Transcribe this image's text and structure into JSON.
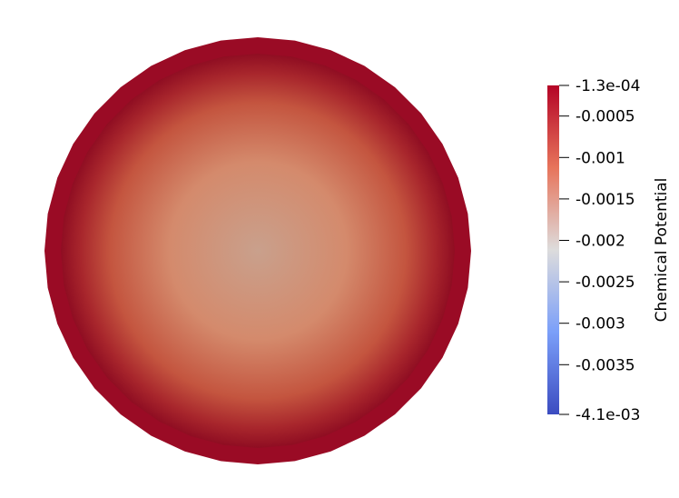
{
  "scene": {
    "field_name": "Chemical Potential",
    "range": {
      "min": -0.0041,
      "max": -0.00013
    },
    "edge_color": "#b40426",
    "center_color": "#c9a08c"
  },
  "color_bar": {
    "title": "Chemical Potential",
    "colormap": "coolwarm",
    "colors": {
      "top": "#b40426",
      "upper": "#e7745b",
      "middle": "#dddcdc",
      "lower": "#7b9ff9",
      "bottom": "#3b4cc0"
    },
    "ticks": [
      {
        "value": -0.00013,
        "label": "-1.3e-04"
      },
      {
        "value": -0.0005,
        "label": "-0.0005"
      },
      {
        "value": -0.001,
        "label": "-0.001"
      },
      {
        "value": -0.0015,
        "label": "-0.0015"
      },
      {
        "value": -0.002,
        "label": "-0.002"
      },
      {
        "value": -0.0025,
        "label": "-0.0025"
      },
      {
        "value": -0.003,
        "label": "-0.003"
      },
      {
        "value": -0.0035,
        "label": "-0.0035"
      },
      {
        "value": -0.0041,
        "label": "-4.1e-03"
      }
    ]
  }
}
